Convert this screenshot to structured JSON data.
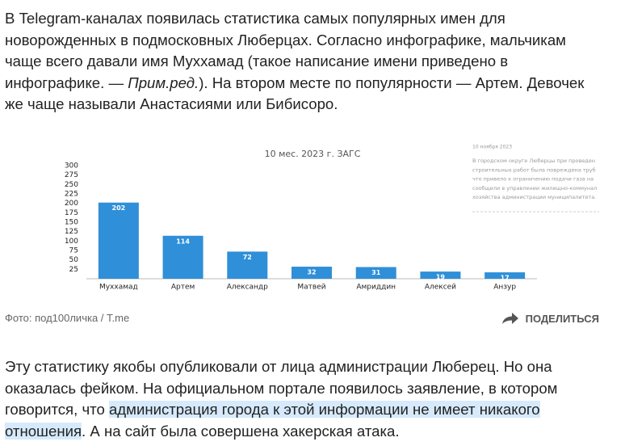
{
  "article": {
    "paragraphs": [
      [
        "В Telegram-каналах появилась статистика самых популярных имен для новорожденных в подмосковных Люберцах. Согласно инфографике, мальчикам чаще всего давали имя Муххамад (такое написание имени приведено в инфографике. — ",
        "Прим.ред.",
        "). На втором месте по популярности — Артем. Девочек же чаще называли Анастасиями или Бибисоро."
      ],
      [
        "Эту статистику якобы опубликовали от лица администрации Люберец. Но она оказалась фейком. На официальном портале появилось заявление, в котором говорится, что ",
        "администрация города к этой информации не имеет никакого отношения",
        ". А на сайт была совершена хакерская атака."
      ]
    ],
    "caption": "Фото: под100личка / T.me",
    "share": "ПОДЕЛИТЬСЯ"
  },
  "chart_data": {
    "type": "bar",
    "title": "10 мес. 2023 г. ЗАГС",
    "categories": [
      "Муххамад",
      "Артем",
      "Александр",
      "Матвей",
      "Амриддин",
      "Алексей",
      "Анзур"
    ],
    "values": [
      202,
      114,
      72,
      32,
      31,
      19,
      17
    ],
    "color": "#2f8fd8",
    "ylim": [
      0,
      300
    ],
    "yticks": [
      25,
      50,
      75,
      100,
      125,
      150,
      175,
      200,
      225,
      250,
      275,
      300
    ],
    "grid": false,
    "note": [
      "10 ноября 2023",
      "В городском округе Люберцы при проведен",
      "строительных работ была повреждена труб",
      "что привело к ограничению подачи газа на",
      "сообщили в управлении жилищно-коммунал",
      "хозяйства администрации муниципалитета."
    ]
  }
}
